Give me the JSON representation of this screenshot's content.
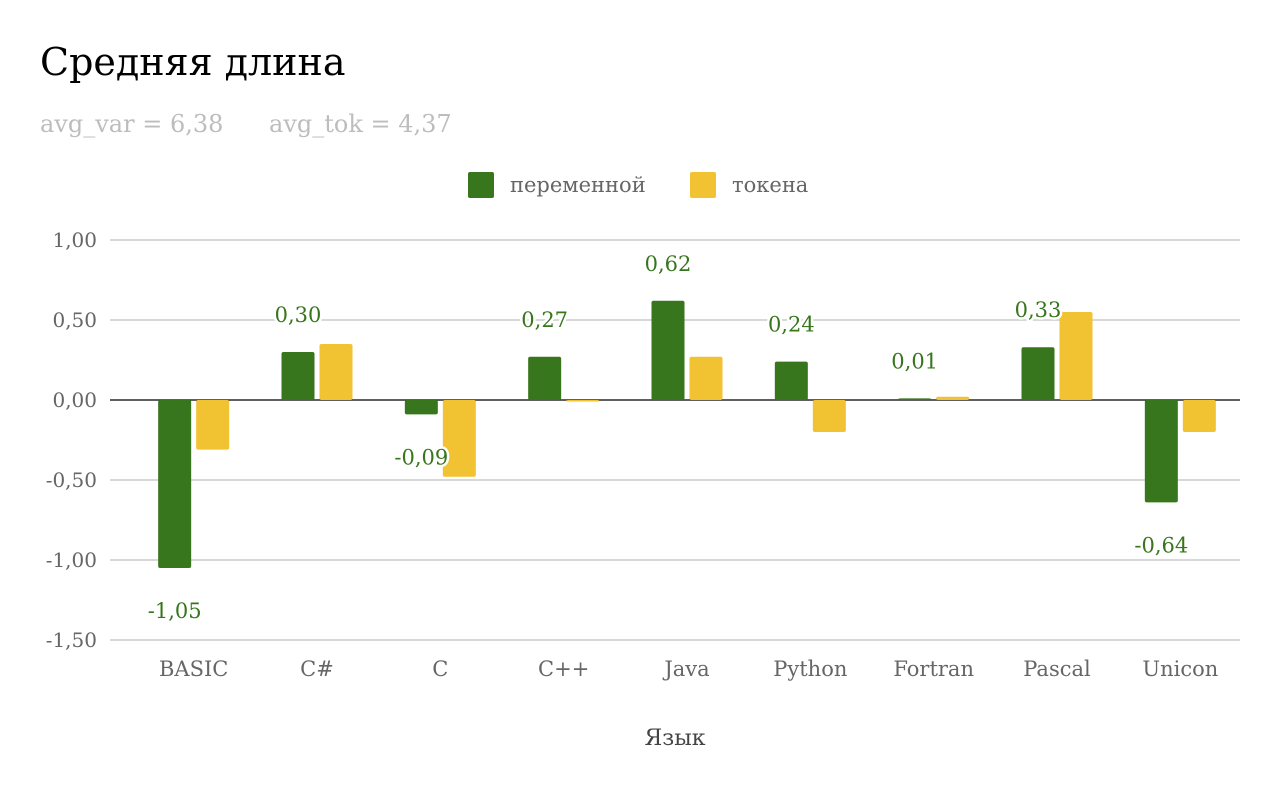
{
  "chart_data": {
    "type": "bar",
    "title": "Средняя длина",
    "subtitle": {
      "avg_var": "avg_var = 6,38",
      "avg_tok": "avg_tok = 4,37"
    },
    "xlabel": "Язык",
    "ylabel": "",
    "ylim": [
      -1.5,
      1.0
    ],
    "yticks": [
      1.0,
      0.5,
      0.0,
      -0.5,
      -1.0,
      -1.5
    ],
    "ytick_labels": [
      "1,00",
      "0,50",
      "0,00",
      "-0,50",
      "-1,00",
      "-1,50"
    ],
    "grid": true,
    "legend_position": "top-center",
    "categories": [
      "BASIC",
      "C#",
      "C",
      "C++",
      "Java",
      "Python",
      "Fortran",
      "Pascal",
      "Unicon"
    ],
    "series": [
      {
        "name": "переменной",
        "color": "#38761d",
        "values": [
          -1.05,
          0.3,
          -0.09,
          0.27,
          0.62,
          0.24,
          0.01,
          0.33,
          -0.64
        ],
        "labels": [
          "-1,05",
          "0,30",
          "-0,09",
          "0,27",
          "0,62",
          "0,24",
          "0,01",
          "0,33",
          "-0,64"
        ]
      },
      {
        "name": "токена",
        "color": "#f1c232",
        "values": [
          -0.31,
          0.35,
          -0.48,
          0.0,
          0.27,
          -0.2,
          0.02,
          0.55,
          -0.2
        ]
      }
    ]
  }
}
